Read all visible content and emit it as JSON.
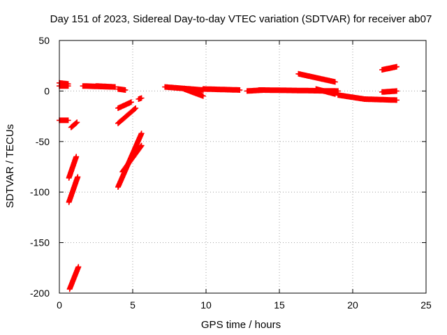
{
  "chart_data": {
    "type": "scatter",
    "title": "Day 151 of 2023, Sidereal Day-to-day VTEC variation (SDTVAR) for receiver ab07",
    "xlabel": "GPS time / hours",
    "ylabel": "SDTVAR / TECUs",
    "xlim": [
      0,
      25
    ],
    "ylim": [
      -200,
      50
    ],
    "xticks": [
      0,
      5,
      10,
      15,
      20,
      25
    ],
    "yticks": [
      -200,
      -150,
      -100,
      -50,
      0,
      50
    ],
    "xtick_labels": [
      "0",
      "5",
      "10",
      "15",
      "20",
      "25"
    ],
    "ytick_labels": [
      "-200",
      "-150",
      "-100",
      "-50",
      "0",
      "50"
    ],
    "grid": true,
    "marker": "+",
    "series": [
      {
        "name": "SDTVAR",
        "color": "#ff0000",
        "segments": [
          {
            "x": [
              0.0,
              0.6
            ],
            "y": [
              8,
              7
            ]
          },
          {
            "x": [
              0.0,
              0.6
            ],
            "y": [
              5,
              5
            ]
          },
          {
            "x": [
              0.0,
              0.6
            ],
            "y": [
              -29,
              -29
            ]
          },
          {
            "x": [
              0.8,
              1.2
            ],
            "y": [
              -36,
              -31
            ]
          },
          {
            "x": [
              0.65,
              1.15
            ],
            "y": [
              -86,
              -65
            ]
          },
          {
            "x": [
              0.65,
              1.25
            ],
            "y": [
              -110,
              -85
            ]
          },
          {
            "x": [
              0.7,
              1.3
            ],
            "y": [
              -196,
              -174
            ]
          },
          {
            "x": [
              1.6,
              3.8
            ],
            "y": [
              5,
              4
            ]
          },
          {
            "x": [
              2.5,
              3.8
            ],
            "y": [
              5,
              4
            ]
          },
          {
            "x": [
              4.0,
              4.5
            ],
            "y": [
              2,
              1
            ]
          },
          {
            "x": [
              4.0,
              4.9
            ],
            "y": [
              -17,
              -11
            ]
          },
          {
            "x": [
              4.0,
              5.2
            ],
            "y": [
              -32,
              -17
            ]
          },
          {
            "x": [
              5.4,
              5.6
            ],
            "y": [
              -8,
              -7
            ]
          },
          {
            "x": [
              4.0,
              5.6
            ],
            "y": [
              -95,
              -42
            ]
          },
          {
            "x": [
              4.3,
              5.6
            ],
            "y": [
              -80,
              -54
            ]
          },
          {
            "x": [
              7.2,
              9.8
            ],
            "y": [
              4,
              1
            ]
          },
          {
            "x": [
              8.5,
              9.8
            ],
            "y": [
              2,
              -5
            ]
          },
          {
            "x": [
              9.8,
              12.3
            ],
            "y": [
              2,
              1
            ]
          },
          {
            "x": [
              12.8,
              14.0
            ],
            "y": [
              0,
              1
            ]
          },
          {
            "x": [
              13.6,
              19.0
            ],
            "y": [
              1,
              0
            ]
          },
          {
            "x": [
              16.3,
              18.8
            ],
            "y": [
              17,
              9
            ]
          },
          {
            "x": [
              17.5,
              18.8
            ],
            "y": [
              2,
              -3
            ]
          },
          {
            "x": [
              19.0,
              20.8
            ],
            "y": [
              -4,
              -8
            ]
          },
          {
            "x": [
              20.8,
              23.0
            ],
            "y": [
              -8,
              -9
            ]
          },
          {
            "x": [
              22.0,
              23.0
            ],
            "y": [
              -1,
              0
            ]
          },
          {
            "x": [
              22.0,
              23.0
            ],
            "y": [
              21,
              24
            ]
          }
        ]
      }
    ]
  }
}
